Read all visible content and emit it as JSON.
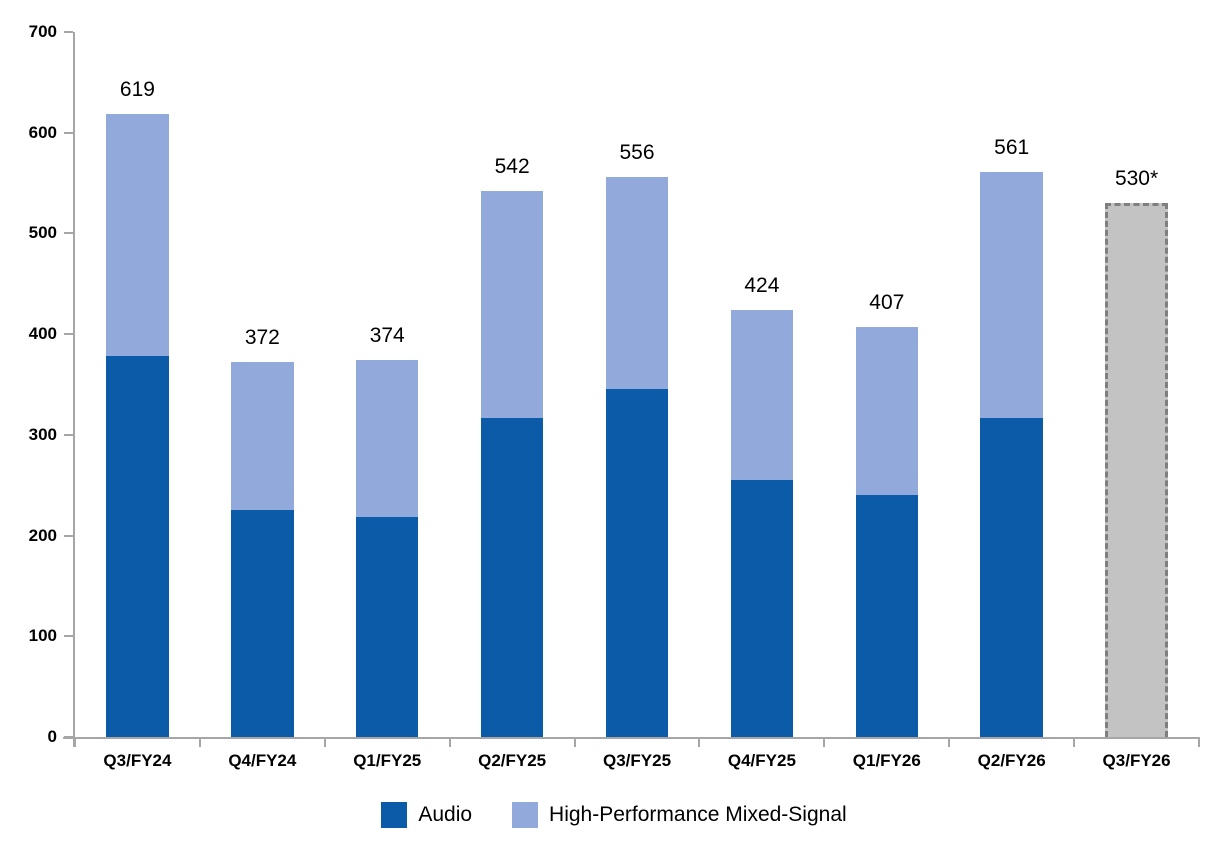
{
  "chart_data": {
    "type": "bar",
    "stacked": true,
    "title": "",
    "xlabel": "",
    "ylabel": "",
    "categories": [
      "Q3/FY24",
      "Q4/FY24",
      "Q1/FY25",
      "Q2/FY25",
      "Q3/FY25",
      "Q4/FY25",
      "Q1/FY26",
      "Q2/FY26",
      "Q3/FY26"
    ],
    "series": [
      {
        "name": "Audio",
        "color": "#0b5ba8",
        "values": [
          378,
          225,
          218,
          317,
          346,
          255,
          240,
          317,
          null
        ]
      },
      {
        "name": "High-Performance Mixed-Signal",
        "color": "#91aadb",
        "values": [
          241,
          147,
          156,
          225,
          210,
          169,
          167,
          244,
          null
        ]
      }
    ],
    "totals": [
      619,
      372,
      374,
      542,
      556,
      424,
      407,
      561,
      530
    ],
    "total_labels": [
      "619",
      "372",
      "374",
      "542",
      "556",
      "424",
      "407",
      "561",
      "530*"
    ],
    "forecast_bar": {
      "category": "Q3/FY26",
      "total": 530,
      "label": "530*",
      "fill": "#c3c3c3",
      "border_color": "#7f7f7f",
      "border_style": "dashed"
    },
    "ylim": [
      0,
      700
    ],
    "yticks": [
      0,
      100,
      200,
      300,
      400,
      500,
      600,
      700
    ],
    "grid": false,
    "axis_color": "#a6a6a6",
    "legend_position": "bottom",
    "legend": [
      "Audio",
      "High-Performance Mixed-Signal"
    ]
  }
}
